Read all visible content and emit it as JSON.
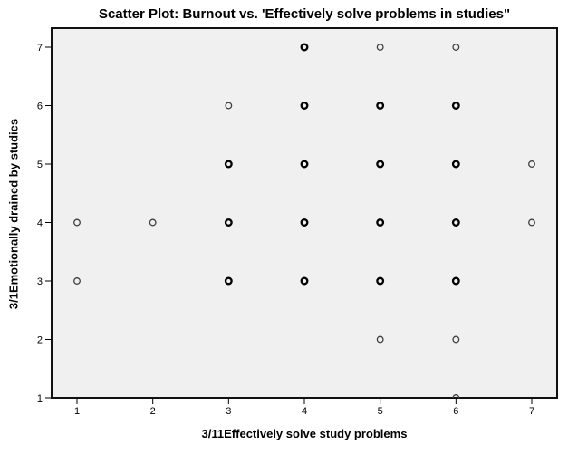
{
  "chart_data": {
    "type": "scatter",
    "title": "Scatter Plot: Burnout vs. 'Effectively solve problems in studies\"",
    "xlabel": "3/11Effectively solve study problems",
    "ylabel": "3/1Emotionally drained by studies",
    "x_ticks": [
      1,
      2,
      3,
      4,
      5,
      6,
      7
    ],
    "y_ticks": [
      1,
      2,
      3,
      4,
      5,
      6,
      7
    ],
    "xlim": [
      0.67,
      7.33
    ],
    "ylim": [
      1,
      7.33
    ],
    "grid": false,
    "legend": "none",
    "marker": "open-circle",
    "points": [
      {
        "x": 4,
        "y": 7,
        "overlap": true
      },
      {
        "x": 5,
        "y": 7,
        "overlap": false
      },
      {
        "x": 6,
        "y": 7,
        "overlap": false
      },
      {
        "x": 3,
        "y": 6,
        "overlap": false
      },
      {
        "x": 4,
        "y": 6,
        "overlap": true
      },
      {
        "x": 5,
        "y": 6,
        "overlap": true
      },
      {
        "x": 6,
        "y": 6,
        "overlap": true
      },
      {
        "x": 3,
        "y": 5,
        "overlap": true
      },
      {
        "x": 4,
        "y": 5,
        "overlap": true
      },
      {
        "x": 5,
        "y": 5,
        "overlap": true
      },
      {
        "x": 6,
        "y": 5,
        "overlap": true
      },
      {
        "x": 7,
        "y": 5,
        "overlap": false
      },
      {
        "x": 1,
        "y": 4,
        "overlap": false
      },
      {
        "x": 2,
        "y": 4,
        "overlap": false
      },
      {
        "x": 3,
        "y": 4,
        "overlap": true
      },
      {
        "x": 4,
        "y": 4,
        "overlap": true
      },
      {
        "x": 5,
        "y": 4,
        "overlap": true
      },
      {
        "x": 6,
        "y": 4,
        "overlap": true
      },
      {
        "x": 7,
        "y": 4,
        "overlap": false
      },
      {
        "x": 1,
        "y": 3,
        "overlap": false
      },
      {
        "x": 3,
        "y": 3,
        "overlap": true
      },
      {
        "x": 4,
        "y": 3,
        "overlap": true
      },
      {
        "x": 5,
        "y": 3,
        "overlap": true
      },
      {
        "x": 6,
        "y": 3,
        "overlap": true
      },
      {
        "x": 5,
        "y": 2,
        "overlap": false
      },
      {
        "x": 6,
        "y": 2,
        "overlap": false
      },
      {
        "x": 6,
        "y": 1,
        "overlap": false
      }
    ]
  },
  "colors": {
    "plot_background": "#f0f0f0",
    "frame": "#111111",
    "tick": "#000000",
    "marker_light": "#3f3f3f",
    "marker_dark": "#000000"
  }
}
